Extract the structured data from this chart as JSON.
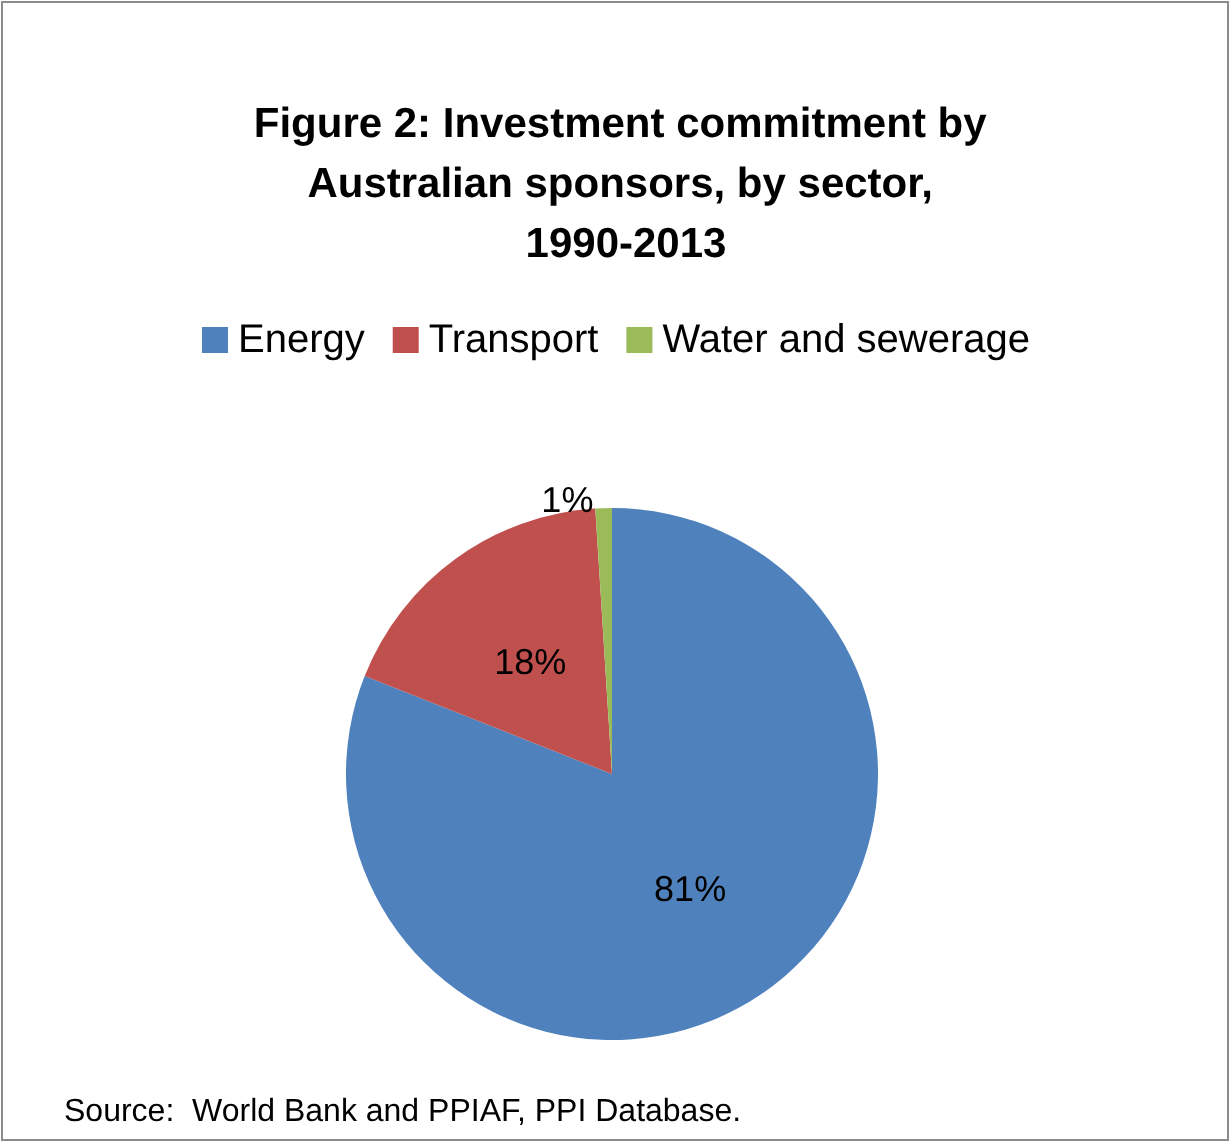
{
  "chart_data": {
    "type": "pie",
    "title": "Figure 2: Investment commitment by Australian sponsors, by sector, 1990-2013",
    "categories": [
      "Energy",
      "Transport",
      "Water and sewerage"
    ],
    "values": [
      81,
      18,
      1
    ],
    "colors": [
      "#4f81bd",
      "#c0504d",
      "#9bbb59"
    ],
    "legend": "top",
    "value_labels": [
      "81%",
      "18%",
      "1%"
    ],
    "annotations": [
      "Source:  World Bank and PPIAF, PPI Database."
    ]
  }
}
